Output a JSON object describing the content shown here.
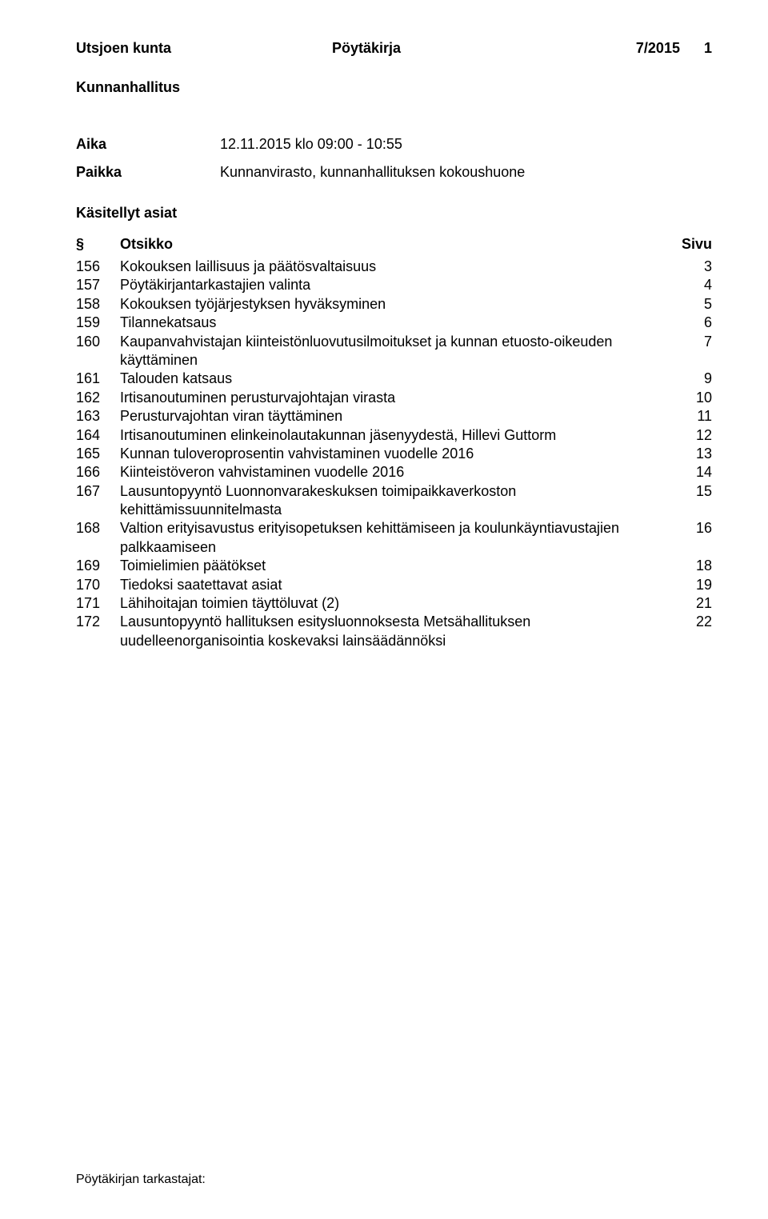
{
  "header": {
    "org": "Utsjoen kunta",
    "doctype": "Pöytäkirja",
    "docnum": "7/2015",
    "pagenum": "1"
  },
  "subheading": "Kunnanhallitus",
  "meta": {
    "time_label": "Aika",
    "time_value": "12.11.2015 klo 09:00 - 10:55",
    "place_label": "Paikka",
    "place_value": "Kunnanvirasto, kunnanhallituksen kokoushuone"
  },
  "section_title": "Käsitellyt asiat",
  "toc_head": {
    "num": "§",
    "title": "Otsikko",
    "page": "Sivu"
  },
  "toc": [
    {
      "num": "156",
      "title": "Kokouksen laillisuus ja päätösvaltaisuus",
      "page": "3"
    },
    {
      "num": "157",
      "title": "Pöytäkirjantarkastajien valinta",
      "page": "4"
    },
    {
      "num": "158",
      "title": "Kokouksen työjärjestyksen hyväksyminen",
      "page": "5"
    },
    {
      "num": "159",
      "title": "Tilannekatsaus",
      "page": "6"
    },
    {
      "num": "160",
      "title": "Kaupanvahvistajan kiinteistönluovutusilmoitukset ja kunnan etuosto-oikeuden käyttäminen",
      "page": "7"
    },
    {
      "num": "161",
      "title": "Talouden katsaus",
      "page": "9"
    },
    {
      "num": "162",
      "title": "Irtisanoutuminen perusturvajohtajan virasta",
      "page": "10"
    },
    {
      "num": "163",
      "title": "Perusturvajohtan viran täyttäminen",
      "page": "11"
    },
    {
      "num": "164",
      "title": "Irtisanoutuminen elinkeinolautakunnan jäsenyydestä, Hillevi Guttorm",
      "page": "12"
    },
    {
      "num": "165",
      "title": "Kunnan tuloveroprosentin vahvistaminen vuodelle 2016",
      "page": "13"
    },
    {
      "num": "166",
      "title": "Kiinteistöveron vahvistaminen vuodelle 2016",
      "page": "14"
    },
    {
      "num": "167",
      "title": "Lausuntopyyntö Luonnonvarakeskuksen toimipaikkaverkoston kehittämissuunnitelmasta",
      "page": "15"
    },
    {
      "num": "168",
      "title": "Valtion erityisavustus erityisopetuksen kehittämiseen ja koulunkäyntiavustajien palkkaamiseen",
      "page": "16"
    },
    {
      "num": "169",
      "title": "Toimielimien päätökset",
      "page": "18"
    },
    {
      "num": "170",
      "title": "Tiedoksi saatettavat asiat",
      "page": "19"
    },
    {
      "num": "171",
      "title": "Lähihoitajan toimien täyttöluvat (2)",
      "page": "21"
    },
    {
      "num": "172",
      "title": "Lausuntopyyntö hallituksen esitysluonnoksesta Metsähallituksen uudelleenorganisointia koskevaksi lainsäädännöksi",
      "page": "22"
    }
  ],
  "footer": "Pöytäkirjan tarkastajat:"
}
